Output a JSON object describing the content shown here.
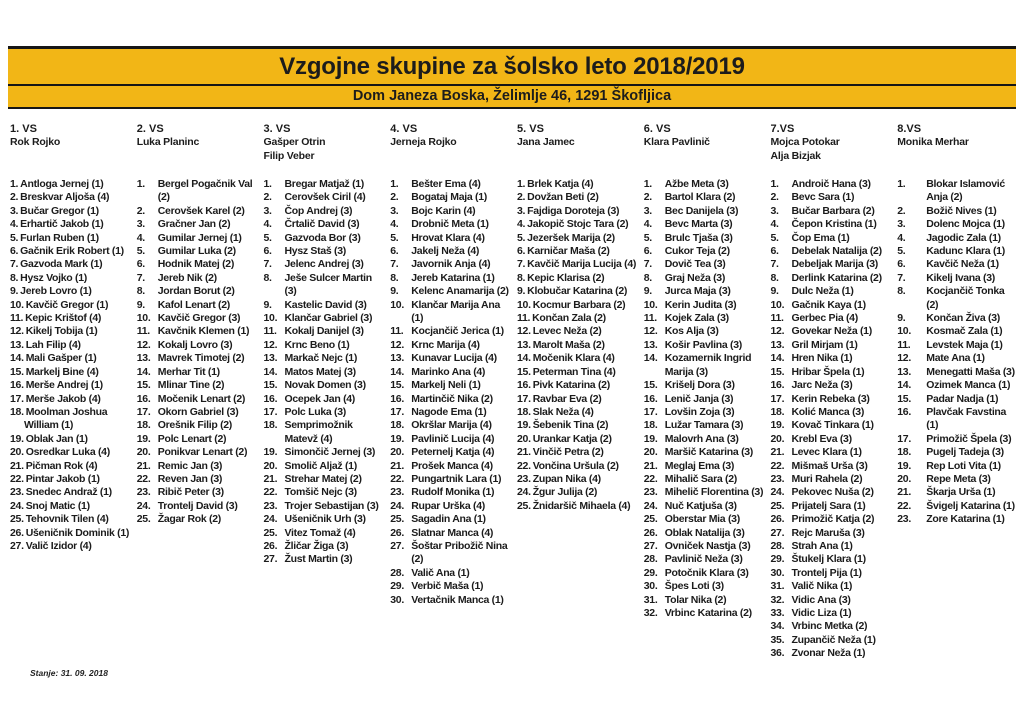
{
  "header": {
    "title": "Vzgojne skupine za šolsko leto 2018/2019",
    "subtitle": "Dom Janeza Boska, Želimlje 46, 1291 Škofljica"
  },
  "footer": {
    "status": "Stanje: 31. 09. 2018"
  },
  "colors": {
    "band_background": "#f2b616",
    "band_border": "#161616",
    "text": "#1c1c1c"
  },
  "groups": [
    {
      "label": "1. VS",
      "leaders": [
        "Rok Rojko"
      ],
      "style": "compact",
      "members": [
        "Antloga Jernej (1)",
        "Breskvar Aljoša (4)",
        "Bučar Gregor (1)",
        "Erhartič Jakob (1)",
        "Furlan Ruben (1)",
        "Gačnik Erik Robert (1)",
        "Gazvoda Mark (1)",
        "Hysz Vojko (1)",
        "Jereb Lovro (1)",
        "Kavčič Gregor (1)",
        "Kepic Krištof (4)",
        "Kikelj Tobija (1)",
        "Lah Filip (4)",
        "Mali Gašper (1)",
        "Markelj Bine (4)",
        "Merše Andrej (1)",
        "Merše Jakob (4)",
        "Moolman Joshua William (1)",
        "Oblak Jan (1)",
        "Osredkar Luka (4)",
        "Pičman Rok (4)",
        "Pintar Jakob (1)",
        "Snedec Andraž (1)",
        "Snoj Matic (1)",
        "Tehovnik Tilen (4)",
        "Ušeničnik Dominik (1)",
        "Valič Izidor (4)"
      ]
    },
    {
      "label": "2. VS",
      "leaders": [
        "Luka Planinc"
      ],
      "style": "tab",
      "members": [
        "Bergel Pogačnik Val (2)",
        "Cerovšek Karel (2)",
        "Gračner Jan (2)",
        "Gumilar Jernej (1)",
        "Gumilar Luka (2)",
        "Hodnik Matej (2)",
        "Jereb Nik (2)",
        "Jordan Borut (2)",
        "Kafol Lenart (2)",
        "Kavčič Gregor (3)",
        "Kavčnik Klemen (1)",
        "Kokalj Lovro (3)",
        "Mavrek Timotej (2)",
        "Merhar Tit (1)",
        "Mlinar Tine (2)",
        "Močenik Lenart (2)",
        "Okorn Gabriel (3)",
        "Orešnik Filip (2)",
        "Polc Lenart (2)",
        "Ponikvar Lenart (2)",
        "Remic Jan (3)",
        "Reven Jan (3)",
        "Ribič Peter (3)",
        "Trontelj David (3)",
        "Žagar Rok (2)"
      ]
    },
    {
      "label": "3. VS",
      "leaders": [
        "Gašper Otrin",
        "Filip Veber"
      ],
      "style": "tab",
      "members": [
        "Bregar Matjaž (1)",
        "Cerovšek Ciril (4)",
        "Čop Andrej (3)",
        "Črtalič David (3)",
        "Gazvoda Bor (3)",
        "Hysz Staš (3)",
        "Jelenc Andrej (3)",
        "Ješe Sulcer Martin (3)",
        "Kastelic David (3)",
        "Klančar Gabriel (3)",
        "Kokalj Danijel (3)",
        "Krnc Beno (1)",
        "Markač Nejc (1)",
        "Matos Matej (3)",
        "Novak Domen (3)",
        "Ocepek Jan (4)",
        "Polc Luka (3)",
        "Semprimožnik Matevž (4)",
        "Simončič Jernej (3)",
        "Smolič Aljaž (1)",
        "Strehar Matej (2)",
        "Tomšič Nejc (3)",
        "Trojer Sebastijan (3)",
        "Ušeničnik Urh (3)",
        "Vitez Tomaž (4)",
        "Žličar Žiga (3)",
        "Žust Martin (3)"
      ]
    },
    {
      "label": "4. VS",
      "leaders": [
        "Jerneja Rojko"
      ],
      "style": "tab",
      "members": [
        "Bešter Ema (4)",
        "Bogataj Maja (1)",
        "Bojc Karin (4)",
        "Drobnič Meta (1)",
        "Hrovat Klara (4)",
        "Jakelj Neža (4)",
        "Javornik Anja (4)",
        "Jereb Katarina (1)",
        "Kelenc Anamarija (2)",
        "Klančar Marija Ana (1)",
        "Kocjančič Jerica (1)",
        "Krnc Marija (4)",
        "Kunavar Lucija (4)",
        "Marinko Ana (4)",
        "Markelj Neli (1)",
        "Martinčič Nika (2)",
        "Nagode Ema (1)",
        "Okršlar Marija (4)",
        "Pavlinič Lucija (4)",
        "Peternelj Katja (4)",
        "Prošek Manca (4)",
        "Pungartnik Lara (1)",
        "Rudolf Monika (1)",
        "Rupar Urška (4)",
        "Sagadin Ana (1)",
        "Slatnar Manca (4)",
        "Šoštar Pribožič Nina (2)",
        "Valič Ana (1)",
        "Verbič Maša (1)",
        "Vertačnik Manca (1)"
      ]
    },
    {
      "label": "5. VS",
      "leaders": [
        "Jana Jamec"
      ],
      "style": "compact",
      "members": [
        "Brlek Katja (4)",
        "Dovžan Beti (2)",
        "Fajdiga Doroteja (3)",
        "Jakopič Stojc Tara (2)",
        "Jezeršek Marija (2)",
        "Karničar Maša (2)",
        "Kavčič Marija Lucija (4)",
        "Kepic Klarisa (2)",
        "Klobučar Katarina (2)",
        "Kocmur Barbara (2)",
        "Končan Zala (2)",
        "Levec Neža (2)",
        "Marolt Maša (2)",
        "Močenik Klara (4)",
        "Peterman Tina (4)",
        "Pivk Katarina (2)",
        "Ravbar Eva (2)",
        "Slak Neža (4)",
        "Šebenik Tina (2)",
        "Urankar Katja (2)",
        "Vinčič Petra (2)",
        "Vončina Uršula (2)",
        "Zupan Nika (4)",
        "Žgur Julija (2)",
        "Žnidaršič Mihaela (4)"
      ]
    },
    {
      "label": "6. VS",
      "leaders": [
        "Klara Pavlinič"
      ],
      "style": "tab",
      "members": [
        "Ažbe Meta (3)",
        "Bartol Klara (2)",
        "Bec Danijela (3)",
        "Bevc Marta (3)",
        "Brulc Tjaša (3)",
        "Cukor Teja (2)",
        "Dovič Tea (3)",
        "Graj Neža (3)",
        "Jurca Maja (3)",
        "Kerin Judita (3)",
        "Kojek Zala (3)",
        "Kos Alja (3)",
        "Košir Pavlina (3)",
        "Kozamernik Ingrid Marija (3)",
        "Krišelj Dora (3)",
        "Lenič Janja (3)",
        "Lovšin Zoja (3)",
        "Lužar Tamara (3)",
        "Malovrh Ana (3)",
        "Maršič Katarina (3)",
        "Meglaj Ema (3)",
        "Mihalič Sara (2)",
        "Mihelič Florentina (3)",
        "Nuč Katjuša (3)",
        "Oberstar Mia (3)",
        "Oblak Natalija (3)",
        "Ovniček Nastja (3)",
        "Pavlinič Neža (3)",
        "Potočnik Klara (3)",
        "Špes Loti (3)",
        "Tolar Nika (2)",
        "Vrbinc Katarina (2)"
      ]
    },
    {
      "label": "7.VS",
      "leaders": [
        "Mojca Potokar",
        "Alja Bizjak"
      ],
      "style": "tab",
      "members": [
        "Androič Hana (3)",
        "Bevc Sara (1)",
        "Bučar Barbara (2)",
        "Čepon Kristina (1)",
        "Čop Ema (1)",
        "Debelak Natalija (2)",
        "Debeljak Marija (3)",
        "Derlink Katarina (2)",
        "Dulc Neža (1)",
        "Gačnik Kaya (1)",
        "Gerbec Pia (4)",
        "Govekar Neža (1)",
        "Gril Mirjam (1)",
        "Hren Nika (1)",
        "Hribar Špela (1)",
        "Jarc Neža (3)",
        "Kerin Rebeka (3)",
        "Kolić Manca (3)",
        "Kovač Tinkara (1)",
        "Krebl Eva (3)",
        "Levec Klara (1)",
        "Mišmaš Urša (3)",
        "Muri Rahela (2)",
        "Pekovec Nuša (2)",
        "Prijatelj Sara (1)",
        "Primožič Katja (2)",
        "Rejc Maruša (3)",
        "Strah Ana (1)",
        "Štukelj Klara (1)",
        "Trontelj Pija (1)",
        "Valič Nika (1)",
        "Vidic Ana (3)",
        "Vidic Liza (1)",
        "Vrbinc Metka (2)",
        "Zupančič Neža (1)",
        "Zvonar Neža (1)"
      ]
    },
    {
      "label": "8.VS",
      "leaders": [
        "Monika Merhar"
      ],
      "style": "wide",
      "members": [
        "Blokar Islamović Anja (2)",
        "Božič Nives (1)",
        "Dolenc Mojca (1)",
        "Jagodic Zala (1)",
        "Kadunc Klara (1)",
        "Kavčič Neža (1)",
        "Kikelj Ivana (3)",
        "Kocjančič Tonka (2)",
        "Končan Živa (3)",
        "Kosmač Zala (1)",
        "Levstek Maja (1)",
        "Mate Ana (1)",
        "Menegatti Maša (3)",
        "Ozimek Manca (1)",
        "Padar Nadja (1)",
        "Plavčak Favstina (1)",
        "Primožič Špela (3)",
        "Pugelj Tadeja (3)",
        "Rep Loti Vita (1)",
        "Repe Meta (3)",
        "Škarja Urša (1)",
        "Švigelj Katarina (1)",
        "Zore Katarina (1)"
      ]
    }
  ]
}
